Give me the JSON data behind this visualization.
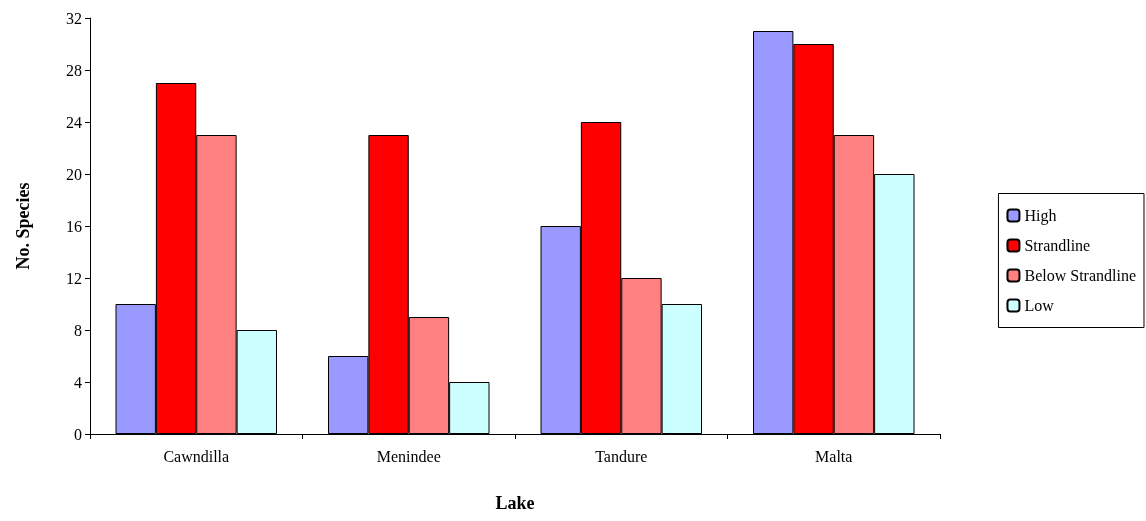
{
  "chart_data": {
    "type": "bar",
    "xlabel": "Lake",
    "ylabel": "No. Species",
    "categories": [
      "Cawndilla",
      "Menindee",
      "Tandure",
      "Malta"
    ],
    "series": [
      {
        "name": "High",
        "color": "#9999ff",
        "values": [
          10,
          6,
          16,
          31
        ]
      },
      {
        "name": "Strandline",
        "color": "#ff0000",
        "values": [
          27,
          23,
          24,
          30
        ]
      },
      {
        "name": "Below Strandline",
        "color": "#ff8080",
        "values": [
          23,
          9,
          12,
          23
        ]
      },
      {
        "name": "Low",
        "color": "#ccffff",
        "values": [
          8,
          4,
          10,
          20
        ]
      }
    ],
    "ylim": [
      0,
      32
    ],
    "yticks": [
      0,
      4,
      8,
      12,
      16,
      20,
      24,
      28,
      32
    ],
    "grid": false,
    "legend": "right"
  }
}
